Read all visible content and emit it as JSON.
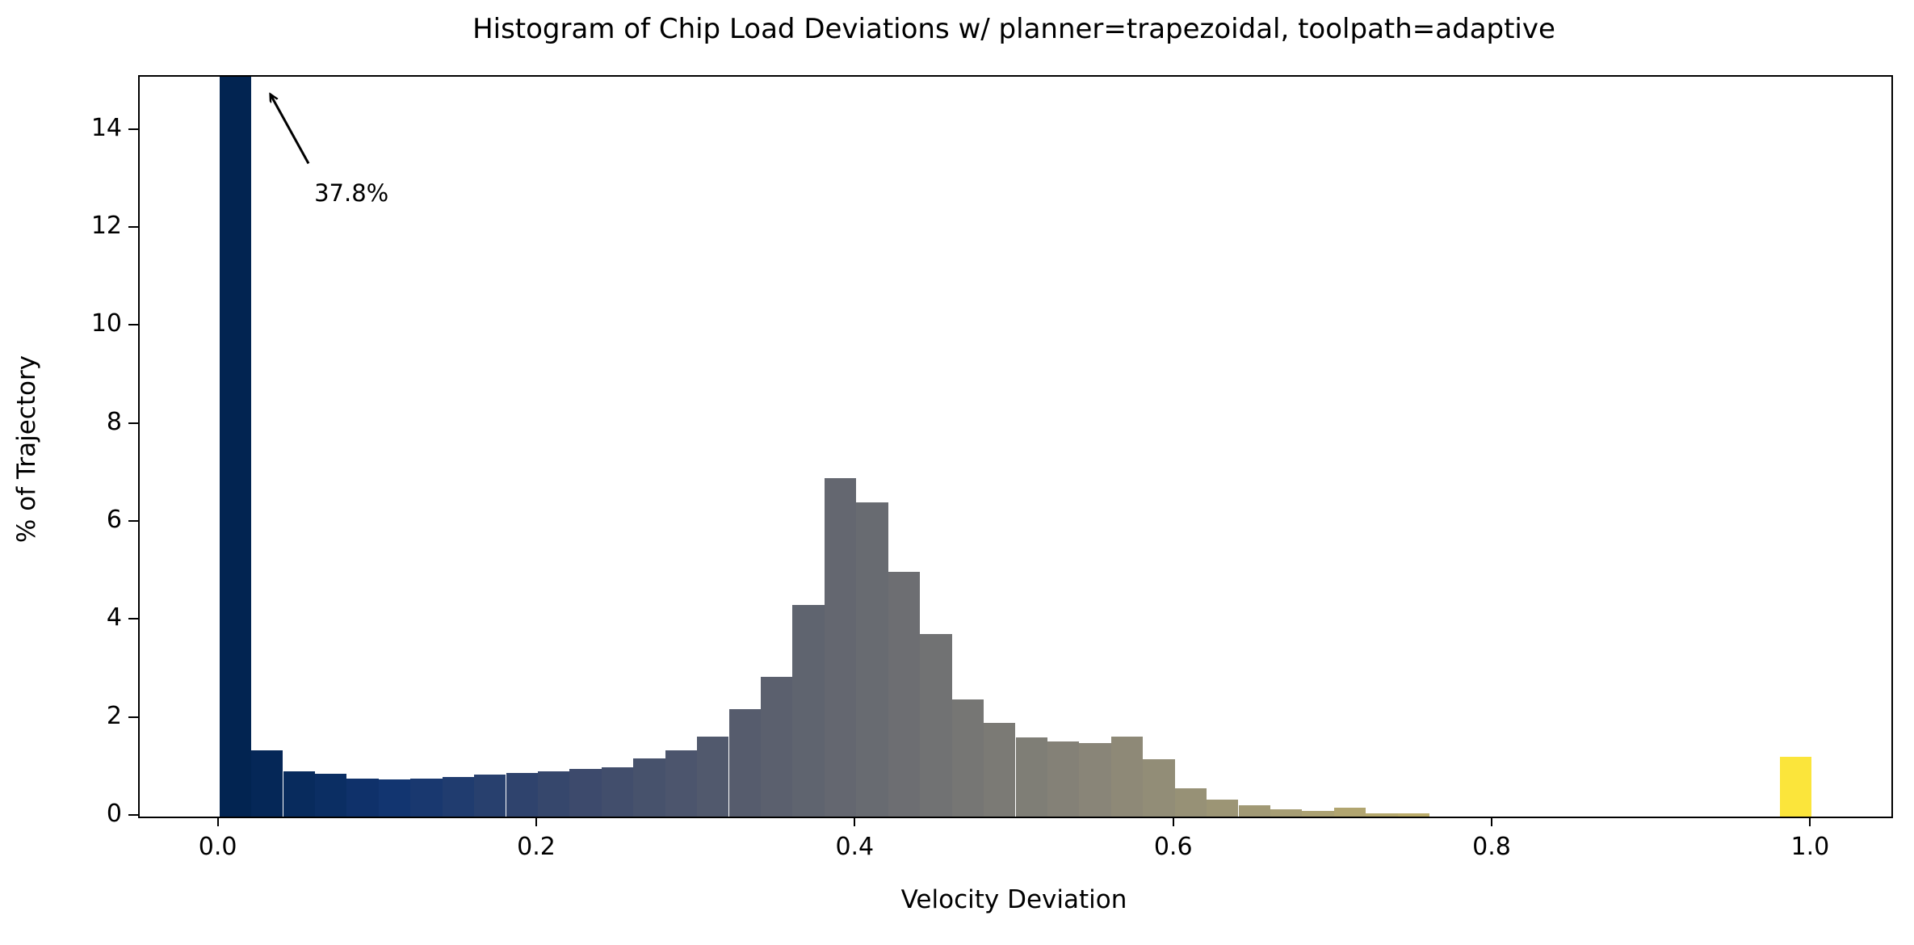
{
  "chart_data": {
    "type": "bar",
    "title": "Histogram of Chip Load Deviations w/ planner=trapezoidal, toolpath=adaptive",
    "xlabel": "Velocity Deviation",
    "ylabel": "% of Trajectory",
    "xlim": [
      -0.05,
      1.05
    ],
    "ylim": [
      0,
      15.1
    ],
    "grid": false,
    "legend": "none",
    "colormap": "cividis",
    "bin_width": 0.02,
    "first_bin_display_clipped": true,
    "first_bin_value_pct": 37.8,
    "x_ticks": [
      0.0,
      0.2,
      0.4,
      0.6,
      0.8,
      1.0
    ],
    "x_tick_labels": [
      "0.0",
      "0.2",
      "0.4",
      "0.6",
      "0.8",
      "1.0"
    ],
    "y_ticks": [
      0,
      2,
      4,
      6,
      8,
      10,
      12,
      14
    ],
    "y_tick_labels": [
      "0",
      "2",
      "4",
      "6",
      "8",
      "10",
      "12",
      "14"
    ],
    "annotation": {
      "text": "37.8%",
      "text_xy": [
        0.0596,
        12.96
      ],
      "arrow_tail_xy": [
        0.056,
        13.33
      ],
      "arrow_tip_xy": [
        0.0322,
        14.73
      ],
      "arrow_color": "#000000"
    },
    "bins": [
      {
        "x0": 0.0,
        "h": 37.8,
        "color": "#022451"
      },
      {
        "x0": 0.02,
        "h": 1.35,
        "color": "#052757"
      },
      {
        "x0": 0.04,
        "h": 0.92,
        "color": "#082b5d"
      },
      {
        "x0": 0.06,
        "h": 0.88,
        "color": "#0b2e63"
      },
      {
        "x0": 0.08,
        "h": 0.78,
        "color": "#0f316a"
      },
      {
        "x0": 0.1,
        "h": 0.76,
        "color": "#123570"
      },
      {
        "x0": 0.12,
        "h": 0.78,
        "color": "#19386f"
      },
      {
        "x0": 0.14,
        "h": 0.81,
        "color": "#203c6f"
      },
      {
        "x0": 0.16,
        "h": 0.85,
        "color": "#28406e"
      },
      {
        "x0": 0.18,
        "h": 0.89,
        "color": "#2f436d"
      },
      {
        "x0": 0.2,
        "h": 0.92,
        "color": "#36476c"
      },
      {
        "x0": 0.22,
        "h": 0.97,
        "color": "#3d4a6c"
      },
      {
        "x0": 0.24,
        "h": 1.0,
        "color": "#424e6c"
      },
      {
        "x0": 0.26,
        "h": 1.18,
        "color": "#47526c"
      },
      {
        "x0": 0.28,
        "h": 1.35,
        "color": "#4c556d"
      },
      {
        "x0": 0.3,
        "h": 1.64,
        "color": "#51596d"
      },
      {
        "x0": 0.32,
        "h": 2.2,
        "color": "#565c6d"
      },
      {
        "x0": 0.34,
        "h": 2.85,
        "color": "#5b606e"
      },
      {
        "x0": 0.36,
        "h": 4.32,
        "color": "#5f646f"
      },
      {
        "x0": 0.38,
        "h": 6.9,
        "color": "#646770"
      },
      {
        "x0": 0.4,
        "h": 6.42,
        "color": "#686b71"
      },
      {
        "x0": 0.42,
        "h": 5.0,
        "color": "#6d6e72"
      },
      {
        "x0": 0.44,
        "h": 3.72,
        "color": "#717273"
      },
      {
        "x0": 0.46,
        "h": 2.39,
        "color": "#767674"
      },
      {
        "x0": 0.48,
        "h": 1.92,
        "color": "#7b7a75"
      },
      {
        "x0": 0.5,
        "h": 1.62,
        "color": "#7f7e76"
      },
      {
        "x0": 0.52,
        "h": 1.53,
        "color": "#848177"
      },
      {
        "x0": 0.54,
        "h": 1.5,
        "color": "#898578"
      },
      {
        "x0": 0.56,
        "h": 1.63,
        "color": "#8e8977"
      },
      {
        "x0": 0.58,
        "h": 1.17,
        "color": "#928d77"
      },
      {
        "x0": 0.6,
        "h": 0.57,
        "color": "#979176"
      },
      {
        "x0": 0.62,
        "h": 0.35,
        "color": "#9c9575"
      },
      {
        "x0": 0.64,
        "h": 0.23,
        "color": "#a19975"
      },
      {
        "x0": 0.66,
        "h": 0.15,
        "color": "#a69d74"
      },
      {
        "x0": 0.68,
        "h": 0.12,
        "color": "#aba172"
      },
      {
        "x0": 0.7,
        "h": 0.18,
        "color": "#b1a570"
      },
      {
        "x0": 0.72,
        "h": 0.07,
        "color": "#b6a96e"
      },
      {
        "x0": 0.74,
        "h": 0.06,
        "color": "#bcad6c"
      },
      {
        "x0": 0.76,
        "h": 0.0,
        "color": "#c1b16a"
      },
      {
        "x0": 0.78,
        "h": 0.0,
        "color": "#c6b667"
      },
      {
        "x0": 0.8,
        "h": 0.0,
        "color": "#ccba63"
      },
      {
        "x0": 0.82,
        "h": 0.0,
        "color": "#d1bf60"
      },
      {
        "x0": 0.84,
        "h": 0.0,
        "color": "#d7c35c"
      },
      {
        "x0": 0.86,
        "h": 0.0,
        "color": "#dcc858"
      },
      {
        "x0": 0.88,
        "h": 0.0,
        "color": "#e1cc55"
      },
      {
        "x0": 0.9,
        "h": 0.0,
        "color": "#e7d14f"
      },
      {
        "x0": 0.92,
        "h": 0.0,
        "color": "#ecd64a"
      },
      {
        "x0": 0.94,
        "h": 0.0,
        "color": "#f1db45"
      },
      {
        "x0": 0.96,
        "h": 0.0,
        "color": "#f6e040"
      },
      {
        "x0": 0.98,
        "h": 1.22,
        "color": "#fbe53b"
      }
    ]
  }
}
